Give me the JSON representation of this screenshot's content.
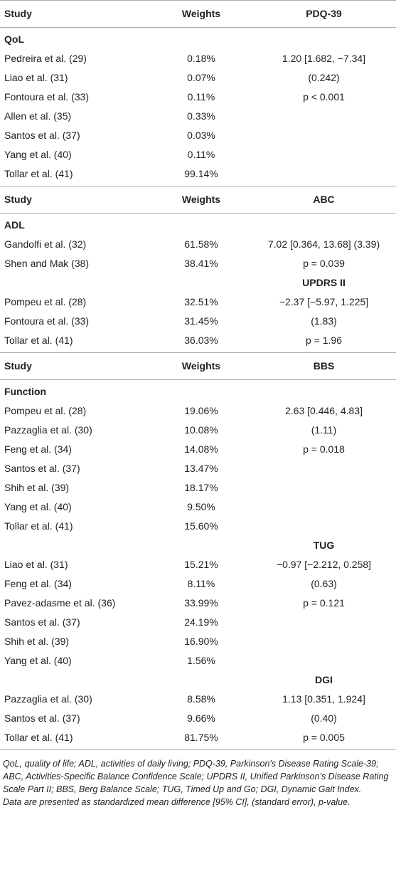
{
  "table": {
    "sections": [
      {
        "header": [
          "Study",
          "Weights",
          "PDQ-39"
        ],
        "group": "QoL",
        "rows": [
          [
            "Pedreira et al. (29)",
            "0.18%",
            "1.20 [1.682, −7.34]"
          ],
          [
            "Liao et al. (31)",
            "0.07%",
            "(0.242)"
          ],
          [
            "Fontoura et al. (33)",
            "0.11%",
            "p < 0.001"
          ],
          [
            "Allen et al. (35)",
            "0.33%",
            null
          ],
          [
            "Santos et al. (37)",
            "0.03%",
            null
          ],
          [
            "Yang et al. (40)",
            "0.11%",
            null
          ],
          [
            "Tollar et al. (41)",
            "99.14%",
            null
          ]
        ]
      },
      {
        "header": [
          "Study",
          "Weights",
          "ABC"
        ],
        "group": "ADL",
        "rows": [
          [
            "Gandolfi et al. (32)",
            "61.58%",
            "7.02 [0.364, 13.68] (3.39)"
          ],
          [
            "Shen and Mak (38)",
            "38.41%",
            "p = 0.039"
          ],
          "UPDRS II",
          [
            "Pompeu et al. (28)",
            "32.51%",
            "−2.37 [−5.97, 1.225]"
          ],
          [
            "Fontoura et al. (33)",
            "31.45%",
            "(1.83)"
          ],
          [
            "Tollar et al. (41)",
            "36.03%",
            "p = 1.96"
          ]
        ]
      },
      {
        "header": [
          "Study",
          "Weights",
          "BBS"
        ],
        "group": "Function",
        "rows": [
          [
            "Pompeu et al. (28)",
            "19.06%",
            "2.63 [0.446, 4.83]"
          ],
          [
            "Pazzaglia et al. (30)",
            "10.08%",
            "(1.11)"
          ],
          [
            "Feng et al. (34)",
            "14.08%",
            "p = 0.018"
          ],
          [
            "Santos et al. (37)",
            "13.47%",
            null
          ],
          [
            "Shih et al. (39)",
            "18.17%",
            null
          ],
          [
            "Yang et al. (40)",
            "9.50%",
            null
          ],
          [
            "Tollar et al. (41)",
            "15.60%",
            null
          ],
          "TUG",
          [
            "Liao et al. (31)",
            "15.21%",
            "−0.97 [−2.212, 0.258]"
          ],
          [
            "Feng et al. (34)",
            "8.11%",
            "(0.63)"
          ],
          [
            "Pavez-adasme et al. (36)",
            "33.99%",
            "p = 0.121"
          ],
          [
            "Santos et al. (37)",
            "24.19%",
            null
          ],
          [
            "Shih et al. (39)",
            "16.90%",
            null
          ],
          [
            "Yang et al. (40)",
            "1.56%",
            null
          ],
          "DGI",
          [
            "Pazzaglia et al. (30)",
            "8.58%",
            "1.13 [0.351, 1.924]"
          ],
          [
            "Santos et al. (37)",
            "9.66%",
            "(0.40)"
          ],
          [
            "Tollar et al. (41)",
            "81.75%",
            "p = 0.005"
          ]
        ]
      }
    ],
    "footnote": [
      "QoL, quality of life; ADL, activities of daily living; PDQ-39, Parkinson's Disease Rating Scale-39; ABC, Activities-Specific Balance Confidence Scale; UPDRS II, Unified Parkinson's Disease Rating Scale Part II; BBS, Berg Balance Scale; TUG, Timed Up and Go; DGI, Dynamic Gait Index.",
      "Data are presented as standardized mean difference [95% CI], (standard error), p-value."
    ]
  }
}
